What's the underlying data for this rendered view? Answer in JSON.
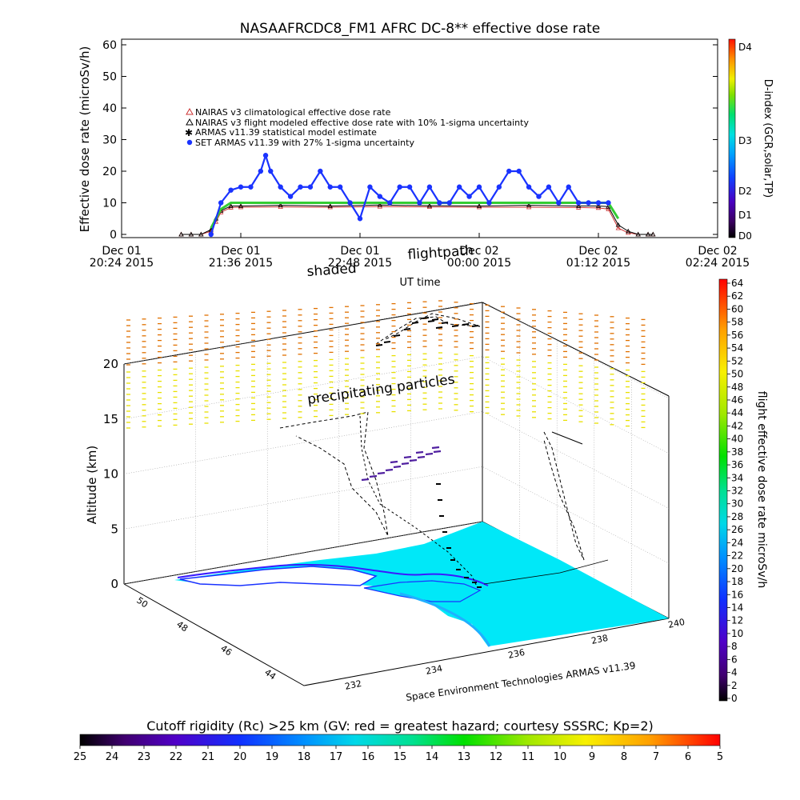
{
  "chart_data": [
    {
      "type": "scatter",
      "title": "NASAAFRCDC8_FM1 AFRC DC-8** effective dose rate",
      "ylabel": "Effective dose rate (microSv/h)",
      "xlabel": "UT time",
      "ylim": [
        0,
        60
      ],
      "yticks": [
        0,
        10,
        20,
        30,
        40,
        50,
        60
      ],
      "xticks": [
        {
          "day": "Dec 01",
          "time": "20:24 2015"
        },
        {
          "day": "Dec 01",
          "time": "21:36 2015"
        },
        {
          "day": "Dec 01",
          "time": "22:48 2015"
        },
        {
          "day": "Dec 02",
          "time": "00:00 2015"
        },
        {
          "day": "Dec 02",
          "time": "01:12 2015"
        },
        {
          "day": "Dec 02",
          "time": "02:24 2015"
        }
      ],
      "x_range_hours_ut": [
        20.4,
        26.4
      ],
      "legend": {
        "placement": "upper-left",
        "entries": [
          {
            "label": "NAIRAS v3 climatological effective dose rate",
            "color": "#cc3333",
            "marker": "triangle"
          },
          {
            "label": "NAIRAS v3 flight modeled effective dose rate with 10% 1-sigma uncertainty",
            "color": "#000000",
            "marker": "triangle"
          },
          {
            "label": "ARMAS v11.39 statistical model estimate",
            "color": "#33cc33",
            "marker": "star"
          },
          {
            "label": "SET ARMAS v11.39 with 27% 1-sigma uncertainty",
            "color": "#1a33ff",
            "marker": "circle"
          }
        ]
      },
      "annotations": [
        "flightpath",
        "shaded"
      ],
      "series": [
        {
          "name": "NAIRAS v3 climatological effective dose rate",
          "x_hours_ut": [
            21.0,
            21.1,
            21.2,
            21.3,
            21.35,
            21.4,
            21.5,
            21.6,
            22.0,
            22.5,
            23.0,
            23.5,
            24.0,
            24.5,
            25.0,
            25.2,
            25.3,
            25.4,
            25.5,
            25.6,
            25.7,
            25.75
          ],
          "values": [
            0,
            0,
            0,
            1,
            4,
            7,
            8.5,
            8.6,
            8.7,
            8.6,
            8.8,
            8.7,
            8.6,
            8.6,
            8.5,
            8.4,
            8.0,
            2,
            0.5,
            0,
            0,
            0
          ]
        },
        {
          "name": "NAIRAS v3 flight modeled effective dose rate with 10% 1-sigma uncertainty",
          "x_hours_ut": [
            21.0,
            21.1,
            21.2,
            21.3,
            21.35,
            21.4,
            21.5,
            21.6,
            22.0,
            22.5,
            23.0,
            23.5,
            24.0,
            24.5,
            25.0,
            25.2,
            25.3,
            25.4,
            25.5,
            25.6,
            25.7,
            25.75
          ],
          "values": [
            0,
            0,
            0,
            1.5,
            5,
            7.5,
            9,
            9,
            9.2,
            9.0,
            9.3,
            9.1,
            9.0,
            9.2,
            9.0,
            9.0,
            8.8,
            3,
            1,
            0,
            0,
            0
          ]
        },
        {
          "name": "ARMAS v11.39 statistical model estimate",
          "x_hours_ut": [
            21.3,
            21.4,
            21.5,
            21.6,
            22.0,
            22.5,
            23.0,
            23.5,
            24.0,
            24.5,
            25.0,
            25.2,
            25.3,
            25.4
          ],
          "values": [
            2,
            8,
            10,
            10,
            10,
            10,
            10,
            10,
            10,
            10,
            10,
            10,
            10,
            5
          ]
        },
        {
          "name": "SET ARMAS v11.39 with 27% 1-sigma uncertainty",
          "x_hours_ut": [
            21.3,
            21.4,
            21.5,
            21.6,
            21.7,
            21.8,
            21.85,
            21.9,
            22.0,
            22.1,
            22.2,
            22.3,
            22.4,
            22.5,
            22.6,
            22.7,
            22.8,
            22.9,
            23.0,
            23.1,
            23.2,
            23.3,
            23.4,
            23.5,
            23.6,
            23.7,
            23.8,
            23.9,
            24.0,
            24.1,
            24.2,
            24.3,
            24.4,
            24.5,
            24.6,
            24.7,
            24.8,
            24.9,
            25.0,
            25.1,
            25.2,
            25.3
          ],
          "values": [
            0,
            10,
            14,
            15,
            15,
            20,
            25,
            20,
            15,
            12,
            15,
            15,
            20,
            15,
            15,
            10,
            5,
            15,
            12,
            10,
            15,
            15,
            10,
            15,
            10,
            10,
            15,
            12,
            15,
            10,
            15,
            20,
            20,
            15,
            12,
            15,
            10,
            15,
            10,
            10,
            10,
            10
          ]
        }
      ],
      "colorbar": {
        "label": "D-index (GCR,solar,TP)",
        "tick_labels": [
          "D0",
          "D1",
          "D2",
          "D3",
          "D4"
        ]
      }
    },
    {
      "type": "scatter",
      "title": "",
      "zlabel": "Altitude (km)",
      "zlim": [
        0,
        20
      ],
      "zticks": [
        0,
        5,
        10,
        15,
        20
      ],
      "latitude_ticks": [
        44,
        46,
        48,
        50
      ],
      "longitude_ticks": [
        232,
        234,
        236,
        238,
        240
      ],
      "annotations": [
        "precipitating particles"
      ],
      "footer_credit": "Space Environment Technologies ARMAS v11.39",
      "colorbar": {
        "label": "flight effective dose rate microSv/h",
        "ticks": [
          0,
          2,
          4,
          6,
          8,
          10,
          12,
          14,
          16,
          18,
          20,
          22,
          24,
          26,
          28,
          30,
          32,
          34,
          36,
          38,
          40,
          42,
          44,
          46,
          48,
          50,
          52,
          54,
          56,
          58,
          60,
          62,
          64
        ]
      }
    },
    {
      "type": "heatmap",
      "title": "Cutoff rigidity (Rc) >25 km (GV: red = greatest hazard; courtesy SSSRC; Kp=2)",
      "colorbar_ticks": [
        25,
        24,
        23,
        22,
        21,
        20,
        19,
        18,
        17,
        16,
        15,
        14,
        13,
        12,
        11,
        10,
        9,
        8,
        7,
        6,
        5
      ]
    }
  ]
}
